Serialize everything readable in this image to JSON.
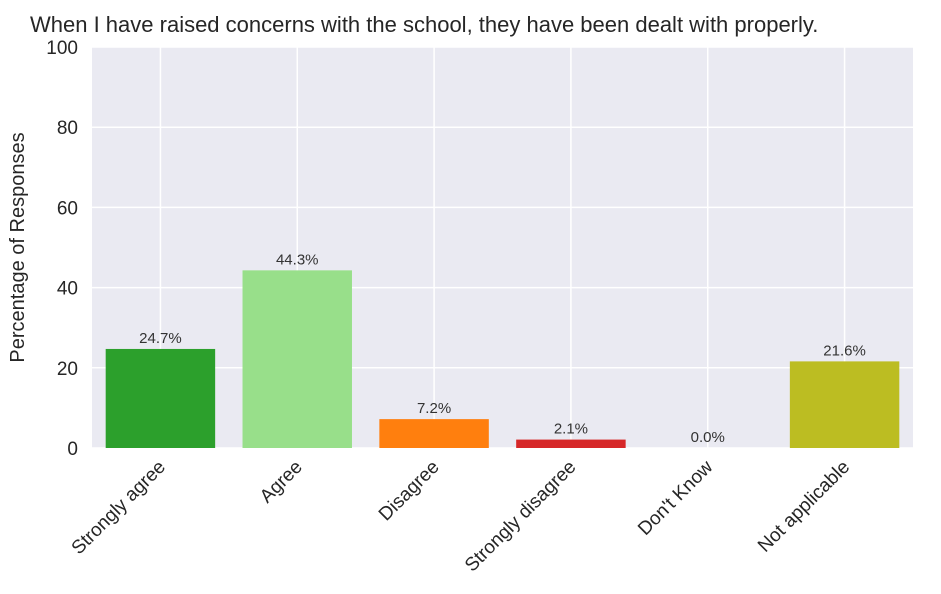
{
  "chart_data": {
    "type": "bar",
    "title": "When I have raised concerns with the school, they have been dealt with properly.",
    "ylabel": "Percentage of Responses",
    "xlabel": "",
    "categories": [
      "Strongly agree",
      "Agree",
      "Disagree",
      "Strongly disagree",
      "Don't Know",
      "Not applicable"
    ],
    "values": [
      24.7,
      44.3,
      7.2,
      2.1,
      0.0,
      21.6
    ],
    "data_labels": [
      "24.7%",
      "44.3%",
      "7.2%",
      "2.1%",
      "0.0%",
      "21.6%"
    ],
    "colors": [
      "#2ca02c",
      "#98df8a",
      "#ff7f0e",
      "#d62728",
      "#ff9896",
      "#bcbd22"
    ],
    "ylim": [
      0,
      100
    ],
    "yticks": [
      0,
      20,
      40,
      60,
      80,
      100
    ],
    "grid": true,
    "legend": "none",
    "background": "#eaeaf2"
  }
}
